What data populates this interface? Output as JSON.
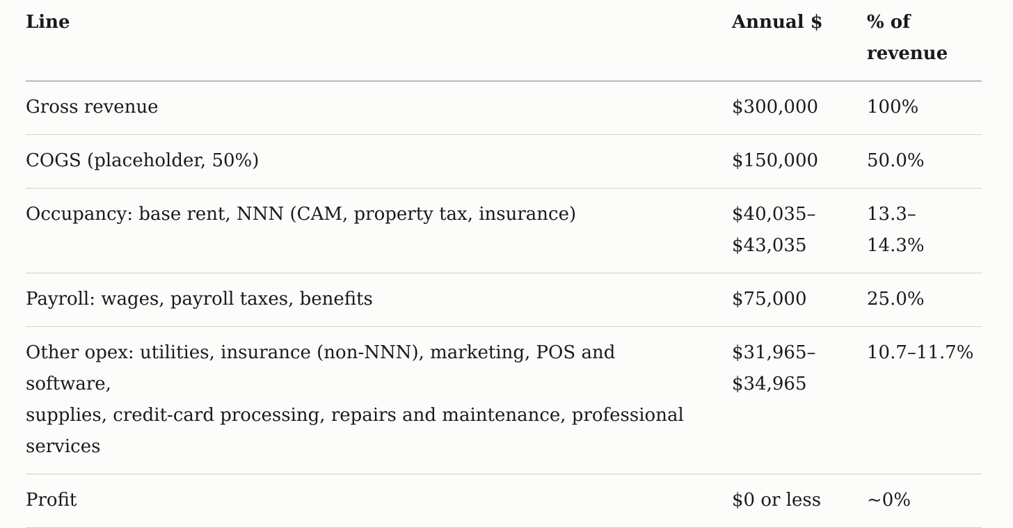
{
  "table": {
    "headers": {
      "line": "Line",
      "annual": "Annual $",
      "pct_line1": "% of",
      "pct_line2": "revenue"
    },
    "rows": [
      {
        "line": [
          "Gross revenue"
        ],
        "annual": [
          "$300,000"
        ],
        "pct": [
          "100%"
        ]
      },
      {
        "line": [
          "COGS (placeholder, 50%)"
        ],
        "annual": [
          "$150,000"
        ],
        "pct": [
          "50.0%"
        ]
      },
      {
        "line": [
          "Occupancy: base rent, NNN (CAM, property tax, insurance)"
        ],
        "annual": [
          "$40,035–",
          "$43,035"
        ],
        "pct": [
          "13.3–",
          "14.3%"
        ]
      },
      {
        "line": [
          "Payroll: wages, payroll taxes, benefits"
        ],
        "annual": [
          "$75,000"
        ],
        "pct": [
          "25.0%"
        ]
      },
      {
        "line": [
          "Other opex: utilities, insurance (non-NNN), marketing, POS and software,",
          "supplies, credit-card processing, repairs and maintenance, professional",
          "services"
        ],
        "annual": [
          "$31,965–",
          "$34,965"
        ],
        "pct": [
          "10.7–11.7%"
        ]
      },
      {
        "line": [
          "Profit"
        ],
        "annual": [
          "$0 or less"
        ],
        "pct": [
          "~0%"
        ]
      }
    ]
  }
}
